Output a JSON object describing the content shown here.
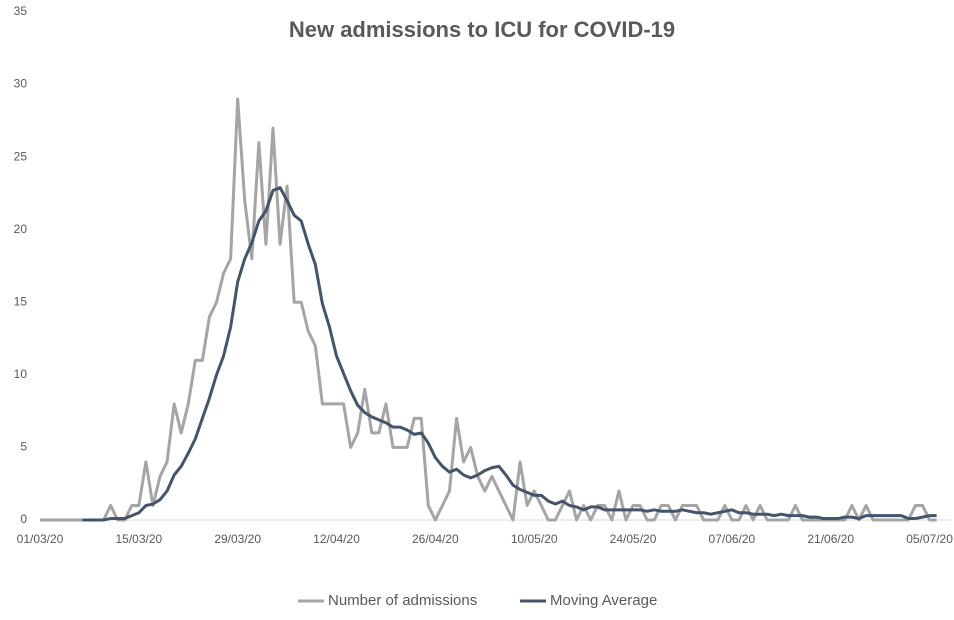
{
  "chart_data": {
    "type": "line",
    "title": "New admissions to ICU for COVID-19",
    "categories": [
      "01/03/20",
      null,
      null,
      null,
      null,
      null,
      null,
      null,
      null,
      null,
      null,
      null,
      null,
      null,
      "15/03/20",
      null,
      null,
      null,
      null,
      null,
      null,
      null,
      null,
      null,
      null,
      null,
      null,
      null,
      "29/03/20",
      null,
      null,
      null,
      null,
      null,
      null,
      null,
      null,
      null,
      null,
      null,
      null,
      null,
      "12/04/20",
      null,
      null,
      null,
      null,
      null,
      null,
      null,
      null,
      null,
      null,
      null,
      null,
      null,
      "26/04/20",
      null,
      null,
      null,
      null,
      null,
      null,
      null,
      null,
      null,
      null,
      null,
      null,
      null,
      "10/05/20",
      null,
      null,
      null,
      null,
      null,
      null,
      null,
      null,
      null,
      null,
      null,
      null,
      null,
      "24/05/20",
      null,
      null,
      null,
      null,
      null,
      null,
      null,
      null,
      null,
      null,
      null,
      null,
      null,
      "07/06/20",
      null,
      null,
      null,
      null,
      null,
      null,
      null,
      null,
      null,
      null,
      null,
      null,
      null,
      "21/06/20",
      null,
      null,
      null,
      null,
      null,
      null,
      null,
      null,
      null,
      null,
      null,
      null,
      null,
      "05/07/20",
      null
    ],
    "series": [
      {
        "name": "Number of admissions",
        "color": "#a5a5a5",
        "width": 3,
        "values": [
          0,
          0,
          0,
          0,
          0,
          0,
          0,
          0,
          0,
          0,
          1,
          0,
          0,
          1,
          1,
          4,
          1,
          3,
          4,
          8,
          6,
          8,
          11,
          11,
          14,
          15,
          17,
          18,
          29,
          22,
          18,
          26,
          19,
          27,
          19,
          23,
          15,
          15,
          13,
          12,
          8,
          8,
          8,
          8,
          5,
          6,
          9,
          6,
          6,
          8,
          5,
          5,
          5,
          7,
          7,
          1,
          0,
          1,
          2,
          7,
          4,
          5,
          3,
          2,
          3,
          2,
          1,
          0,
          4,
          1,
          2,
          1,
          0,
          0,
          1,
          2,
          0,
          1,
          0,
          1,
          1,
          0,
          2,
          0,
          1,
          1,
          0,
          0,
          1,
          1,
          0,
          1,
          1,
          1,
          0,
          0,
          0,
          1,
          0,
          0,
          1,
          0,
          1,
          0,
          0,
          0,
          0,
          1,
          0,
          0,
          0,
          0,
          0,
          0,
          0,
          1,
          0,
          1,
          0,
          0,
          0,
          0,
          0,
          0,
          1,
          1,
          0,
          0
        ]
      },
      {
        "name": "Moving Average",
        "color": "#44546a",
        "width": 3,
        "values": [
          null,
          null,
          null,
          null,
          null,
          null,
          0,
          0,
          0,
          0,
          0.1,
          0.1,
          0.1,
          0.3,
          0.5,
          1,
          1.1,
          1.4,
          2,
          3.1,
          3.7,
          4.6,
          5.6,
          7,
          8.4,
          10,
          11.3,
          13.3,
          16.4,
          18,
          19.1,
          20.6,
          21.3,
          22.7,
          22.9,
          22,
          21,
          20.6,
          19,
          17.6,
          14.9,
          13.3,
          11.3,
          10.1,
          8.9,
          7.9,
          7.4,
          7.1,
          6.9,
          6.7,
          6.4,
          6.4,
          6.2,
          5.9,
          6,
          5.3,
          4.3,
          3.7,
          3.3,
          3.5,
          3.1,
          2.9,
          3.1,
          3.4,
          3.6,
          3.7,
          3.1,
          2.4,
          2.1,
          1.9,
          1.7,
          1.7,
          1.3,
          1.1,
          1.3,
          1,
          0.9,
          0.7,
          0.9,
          0.9,
          0.7,
          0.7,
          0.7,
          0.7,
          0.7,
          0.7,
          0.6,
          0.7,
          0.6,
          0.6,
          0.6,
          0.7,
          0.6,
          0.5,
          0.5,
          0.4,
          0.5,
          0.6,
          0.7,
          0.5,
          0.5,
          0.4,
          0.4,
          0.4,
          0.3,
          0.4,
          0.3,
          0.3,
          0.3,
          0.2,
          0.2,
          0.1,
          0.1,
          0.1,
          0.2,
          0.2,
          0.1,
          0.3,
          0.3,
          0.3,
          0.3,
          0.3,
          0.3,
          0.1,
          0.1,
          0.2,
          0.3,
          0.3
        ]
      }
    ],
    "ylim": [
      0,
      35
    ],
    "yticks": [
      0,
      5,
      10,
      15,
      20,
      25,
      30,
      35
    ],
    "grid": false,
    "legend": "bottom"
  }
}
